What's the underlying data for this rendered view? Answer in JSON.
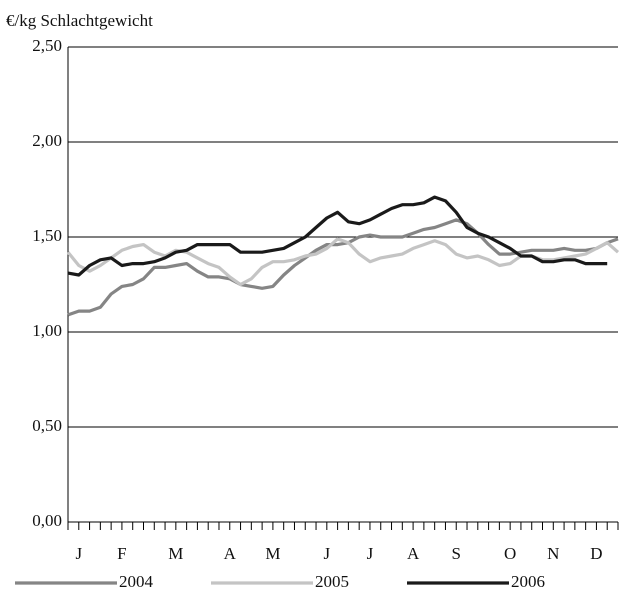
{
  "chart_data": {
    "type": "line",
    "y_axis_label": "€/kg Schlachtgewicht",
    "categories": [
      null,
      "J",
      null,
      null,
      null,
      "F",
      null,
      null,
      null,
      null,
      "M",
      null,
      null,
      null,
      null,
      "A",
      null,
      null,
      null,
      "M",
      null,
      null,
      null,
      null,
      "J",
      null,
      null,
      null,
      "J",
      null,
      null,
      null,
      "A",
      null,
      null,
      null,
      "S",
      null,
      null,
      null,
      null,
      "O",
      null,
      null,
      null,
      "N",
      null,
      null,
      null,
      "D",
      null,
      null
    ],
    "series": [
      {
        "name": "2004",
        "color": "#858585",
        "values": [
          1.09,
          1.11,
          1.11,
          1.13,
          1.2,
          1.24,
          1.25,
          1.28,
          1.34,
          1.34,
          1.35,
          1.36,
          1.32,
          1.29,
          1.29,
          1.28,
          1.25,
          1.24,
          1.23,
          1.24,
          1.3,
          1.35,
          1.39,
          1.43,
          1.46,
          1.46,
          1.47,
          1.5,
          1.51,
          1.5,
          1.5,
          1.5,
          1.52,
          1.54,
          1.55,
          1.57,
          1.59,
          1.57,
          1.52,
          1.46,
          1.41,
          1.41,
          1.42,
          1.43,
          1.43,
          1.43,
          1.44,
          1.43,
          1.43,
          1.44,
          1.47,
          1.49
        ]
      },
      {
        "name": "2005",
        "color": "#c4c4c4",
        "values": [
          1.42,
          1.35,
          1.32,
          1.35,
          1.39,
          1.43,
          1.45,
          1.46,
          1.42,
          1.4,
          1.43,
          1.42,
          1.39,
          1.36,
          1.34,
          1.29,
          1.25,
          1.28,
          1.34,
          1.37,
          1.37,
          1.38,
          1.4,
          1.41,
          1.44,
          1.49,
          1.47,
          1.41,
          1.37,
          1.39,
          1.4,
          1.41,
          1.44,
          1.46,
          1.48,
          1.46,
          1.41,
          1.39,
          1.4,
          1.38,
          1.35,
          1.36,
          1.4,
          1.4,
          1.38,
          1.38,
          1.39,
          1.4,
          1.41,
          1.44,
          1.47,
          1.42
        ]
      },
      {
        "name": "2006",
        "color": "#1a1a1a",
        "values": [
          1.31,
          1.3,
          1.35,
          1.38,
          1.39,
          1.35,
          1.36,
          1.36,
          1.37,
          1.39,
          1.42,
          1.43,
          1.46,
          1.46,
          1.46,
          1.46,
          1.42,
          1.42,
          1.42,
          1.43,
          1.44,
          1.47,
          1.5,
          1.55,
          1.6,
          1.63,
          1.58,
          1.57,
          1.59,
          1.62,
          1.65,
          1.67,
          1.67,
          1.68,
          1.71,
          1.69,
          1.63,
          1.55,
          1.52,
          1.5,
          1.47,
          1.44,
          1.4,
          1.4,
          1.37,
          1.37,
          1.38,
          1.38,
          1.36,
          1.36,
          1.36,
          null
        ]
      }
    ],
    "ylim": [
      0,
      2.5
    ],
    "yticks": [
      {
        "value": 0,
        "label": "0,00"
      },
      {
        "value": 0.5,
        "label": "0,50"
      },
      {
        "value": 1,
        "label": "1,00"
      },
      {
        "value": 1.5,
        "label": "1,50"
      },
      {
        "value": 2,
        "label": "2,00"
      },
      {
        "value": 2.5,
        "label": "2,50"
      }
    ],
    "grid": true,
    "legend": "bottom"
  }
}
